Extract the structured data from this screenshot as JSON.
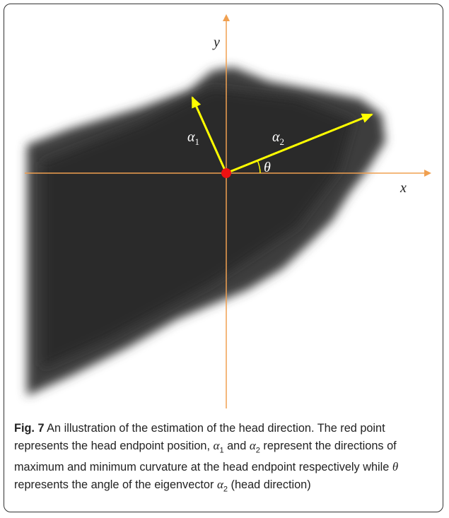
{
  "figure": {
    "axis_labels": {
      "y": "y",
      "x": "x"
    },
    "alpha1": {
      "symbol": "α",
      "subscript": "1"
    },
    "alpha2": {
      "symbol": "α",
      "subscript": "2"
    },
    "theta": "θ"
  },
  "caption": {
    "label": "Fig. 7",
    "segments": [
      "An illustration of the estimation of the head direction. The red point represents the head endpoint position,",
      "α",
      "1",
      "and",
      "α",
      "2",
      "represent the directions of maximum and minimum curvature at the head endpoint respectively while",
      "θ",
      "represents the angle of the eigenvector",
      "α",
      "2",
      "(head direction)"
    ]
  }
}
